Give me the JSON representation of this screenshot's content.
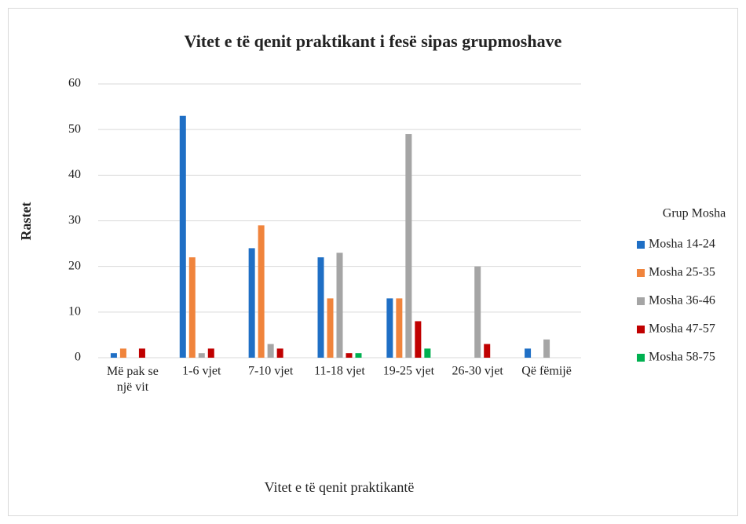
{
  "chart_data": {
    "type": "bar",
    "title": "Vitet e të qenit praktikant i fesë sipas grupmoshave",
    "x_label": "Vitet e të qenit praktikantë",
    "y_label": "Rastet",
    "legend_title": "Grup Mosha",
    "legend": "right",
    "grid": true,
    "categories": [
      "Më pak se një vit",
      "1-6 vjet",
      "7-10 vjet",
      "11-18 vjet",
      "19-25 vjet",
      "26-30 vjet",
      "Që fëmijë"
    ],
    "series": [
      {
        "name": "Mosha 14-24",
        "color": "#1f6fc5",
        "values": [
          1,
          53,
          24,
          22,
          13,
          0,
          2
        ]
      },
      {
        "name": "Mosha 25-35",
        "color": "#f0843c",
        "values": [
          2,
          22,
          29,
          13,
          13,
          0,
          0
        ]
      },
      {
        "name": "Mosha 36-46",
        "color": "#a5a5a5",
        "values": [
          0,
          1,
          3,
          23,
          49,
          20,
          4
        ]
      },
      {
        "name": "Mosha 47-57",
        "color": "#c00000",
        "values": [
          2,
          2,
          2,
          1,
          8,
          3,
          0
        ]
      },
      {
        "name": "Mosha 58-75",
        "color": "#00b050",
        "values": [
          0,
          0,
          0,
          1,
          2,
          0,
          0
        ]
      }
    ],
    "ylim": [
      0,
      60
    ],
    "yticks": [
      0,
      10,
      20,
      30,
      40,
      50,
      60
    ]
  }
}
